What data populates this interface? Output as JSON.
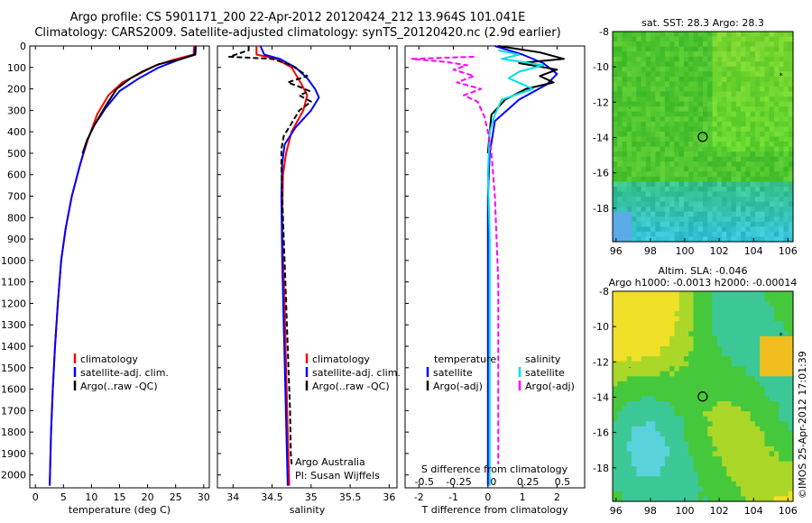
{
  "header": {
    "title_line1": "Argo profile: CS 5901171_200 22-Apr-2012 20120424_212 13.964S 101.041E",
    "title_line2": "Climatology: CARS2009. Satellite-adjusted climatology: synTS_20120420.nc (2.9d earlier)"
  },
  "colors": {
    "climatology": "#ff0000",
    "satellite": "#0000ff",
    "argo": "#000000",
    "temp_sat_diff": "#00e0e0",
    "sal_argo_diff": "#ff00ff"
  },
  "chart_data": [
    {
      "type": "line",
      "id": "temperature",
      "xlabel": "temperature (deg C)",
      "ylabel": "",
      "xlim": [
        -1,
        31
      ],
      "ylim": [
        2060,
        0
      ],
      "xticks": [
        0,
        5,
        10,
        15,
        20,
        25,
        30
      ],
      "yticks": [
        0,
        100,
        200,
        300,
        400,
        500,
        600,
        700,
        800,
        900,
        1000,
        1100,
        1200,
        1300,
        1400,
        1500,
        1600,
        1700,
        1800,
        1900,
        2000
      ],
      "legend": [
        "climatology",
        "satellite-adj. clim.",
        "Argo(..raw -QC)"
      ],
      "series": [
        {
          "name": "climatology",
          "color": "#ff0000",
          "points": [
            [
              28.3,
              0
            ],
            [
              28.2,
              40
            ],
            [
              24.5,
              65
            ],
            [
              21.5,
              90
            ],
            [
              18.5,
              130
            ],
            [
              15.5,
              170
            ],
            [
              13,
              230
            ],
            [
              11,
              320
            ],
            [
              9.3,
              440
            ],
            [
              8,
              550
            ],
            [
              6.5,
              700
            ],
            [
              5.4,
              850
            ],
            [
              4.6,
              1000
            ],
            [
              4,
              1200
            ],
            [
              3.5,
              1400
            ],
            [
              3.1,
              1600
            ],
            [
              2.8,
              1800
            ],
            [
              2.6,
              2000
            ],
            [
              2.55,
              2050
            ]
          ]
        },
        {
          "name": "satellite-adj. clim.",
          "color": "#0000ff",
          "points": [
            [
              28.5,
              0
            ],
            [
              28.4,
              40
            ],
            [
              25.5,
              65
            ],
            [
              22,
              100
            ],
            [
              18.5,
              150
            ],
            [
              15,
              210
            ],
            [
              12.5,
              290
            ],
            [
              10.5,
              370
            ],
            [
              9.2,
              440
            ],
            [
              8,
              550
            ],
            [
              6.5,
              700
            ],
            [
              5.4,
              850
            ],
            [
              4.6,
              1000
            ],
            [
              4,
              1200
            ],
            [
              3.5,
              1400
            ],
            [
              3.1,
              1600
            ],
            [
              2.8,
              1800
            ],
            [
              2.6,
              2000
            ],
            [
              2.55,
              2050
            ]
          ]
        },
        {
          "name": "Argo(..raw -QC)",
          "color": "#000000",
          "points": [
            [
              28.6,
              0
            ],
            [
              28.5,
              40
            ],
            [
              26,
              60
            ],
            [
              22,
              85
            ],
            [
              19,
              120
            ],
            [
              17,
              150
            ],
            [
              14.5,
              200
            ],
            [
              12.5,
              280
            ],
            [
              10.5,
              370
            ],
            [
              9.2,
              440
            ],
            [
              8.4,
              500
            ]
          ]
        }
      ]
    },
    {
      "type": "line",
      "id": "salinity",
      "xlabel": "salinity",
      "ylabel": "",
      "xlim": [
        33.8,
        36.1
      ],
      "ylim": [
        2060,
        0
      ],
      "xticks": [
        34,
        34.5,
        35,
        35.5,
        36
      ],
      "legend": [
        "climatology",
        "satellite-adj. clim.",
        "Argo(..raw -QC)"
      ],
      "annotations": [
        "Argo Australia",
        "PI: Susan Wijffels"
      ],
      "series": [
        {
          "name": "climatology",
          "color": "#ff0000",
          "points": [
            [
              34.3,
              0
            ],
            [
              34.3,
              40
            ],
            [
              34.55,
              60
            ],
            [
              34.75,
              100
            ],
            [
              34.88,
              180
            ],
            [
              34.95,
              230
            ],
            [
              34.9,
              300
            ],
            [
              34.75,
              400
            ],
            [
              34.68,
              500
            ],
            [
              34.64,
              600
            ],
            [
              34.63,
              800
            ],
            [
              34.64,
              1000
            ],
            [
              34.66,
              1200
            ],
            [
              34.68,
              1500
            ],
            [
              34.7,
              1800
            ],
            [
              34.72,
              2050
            ]
          ]
        },
        {
          "name": "satellite-adj. clim.",
          "color": "#0000ff",
          "points": [
            [
              34.35,
              0
            ],
            [
              34.4,
              40
            ],
            [
              34.6,
              60
            ],
            [
              34.8,
              100
            ],
            [
              34.95,
              150
            ],
            [
              35.05,
              200
            ],
            [
              35.1,
              240
            ],
            [
              35.0,
              300
            ],
            [
              34.8,
              380
            ],
            [
              34.66,
              460
            ],
            [
              34.63,
              550
            ],
            [
              34.62,
              700
            ],
            [
              34.63,
              1000
            ],
            [
              34.65,
              1300
            ],
            [
              34.67,
              1600
            ],
            [
              34.69,
              1900
            ],
            [
              34.7,
              2050
            ]
          ]
        },
        {
          "name": "Argo(..raw -QC)",
          "color": "#000000",
          "points": [
            [
              34.2,
              0
            ],
            [
              34.2,
              20
            ],
            [
              33.95,
              50
            ],
            [
              34.5,
              60
            ],
            [
              34.75,
              90
            ],
            [
              34.95,
              140
            ],
            [
              34.7,
              170
            ],
            [
              34.85,
              190
            ],
            [
              34.98,
              210
            ],
            [
              34.85,
              230
            ],
            [
              35.0,
              260
            ],
            [
              34.85,
              300
            ],
            [
              34.75,
              360
            ],
            [
              34.65,
              420
            ],
            [
              34.62,
              480
            ],
            [
              34.62,
              550
            ],
            [
              34.63,
              700
            ],
            [
              34.65,
              900
            ],
            [
              34.67,
              1100
            ],
            [
              34.69,
              1300
            ],
            [
              34.71,
              1500
            ],
            [
              34.73,
              1700
            ],
            [
              34.74,
              1900
            ],
            [
              34.75,
              1950
            ]
          ]
        }
      ]
    },
    {
      "type": "line",
      "id": "difference",
      "xlabel": "T difference from climatology",
      "xlabel2": "S difference from climatology",
      "xlim": [
        -2.4,
        2.8
      ],
      "ylim": [
        2060,
        0
      ],
      "xticks": [
        -2,
        -1,
        0,
        1,
        2
      ],
      "xticks_top": [
        -0.5,
        -0.25,
        0,
        0.25,
        0.5
      ],
      "legend_groups": [
        {
          "title": "temperature",
          "entries": [
            "satellite",
            "Argo(-adj)"
          ]
        },
        {
          "title": "salinity",
          "entries": [
            "satellite",
            "Argo(-adj)"
          ]
        }
      ],
      "series": [
        {
          "name": "temperature satellite",
          "color": "#0000ff",
          "points": [
            [
              0.2,
              0
            ],
            [
              1.0,
              40
            ],
            [
              1.6,
              80
            ],
            [
              2.0,
              130
            ],
            [
              1.7,
              180
            ],
            [
              0.9,
              250
            ],
            [
              0.2,
              350
            ],
            [
              0.05,
              500
            ],
            [
              0,
              700
            ],
            [
              0,
              1000
            ],
            [
              0,
              1400
            ],
            [
              0,
              1800
            ],
            [
              0,
              2050
            ]
          ]
        },
        {
          "name": "temperature Argo(-adj)",
          "color": "#000000",
          "points": [
            [
              0.3,
              0
            ],
            [
              1.5,
              30
            ],
            [
              2.2,
              60
            ],
            [
              0.9,
              80
            ],
            [
              2.0,
              110
            ],
            [
              1.5,
              140
            ],
            [
              1.9,
              170
            ],
            [
              1.1,
              200
            ],
            [
              0.5,
              250
            ],
            [
              0.1,
              320
            ],
            [
              0.05,
              400
            ],
            [
              0,
              500
            ]
          ]
        },
        {
          "name": "salinity satellite",
          "color": "#00e0e0",
          "points": [
            [
              0.3,
              20
            ],
            [
              0.9,
              40
            ],
            [
              0.4,
              60
            ],
            [
              1.6,
              90
            ],
            [
              0.9,
              120
            ],
            [
              0.6,
              150
            ],
            [
              1.3,
              200
            ],
            [
              0.4,
              250
            ],
            [
              0.2,
              320
            ],
            [
              0.05,
              400
            ],
            [
              0.0,
              600
            ],
            [
              0.05,
              900
            ],
            [
              0.05,
              1200
            ],
            [
              0.05,
              1500
            ],
            [
              0.05,
              1800
            ],
            [
              0.05,
              2050
            ]
          ]
        },
        {
          "name": "salinity Argo(-adj)",
          "color": "#ff00ff",
          "points": [
            [
              -0.4,
              50
            ],
            [
              -2.2,
              60
            ],
            [
              -1.2,
              75
            ],
            [
              -0.6,
              90
            ],
            [
              -1.0,
              110
            ],
            [
              -0.4,
              140
            ],
            [
              -0.9,
              170
            ],
            [
              -0.2,
              200
            ],
            [
              -0.7,
              230
            ],
            [
              -0.3,
              260
            ],
            [
              -0.1,
              330
            ],
            [
              0.0,
              400
            ],
            [
              0.1,
              500
            ],
            [
              0.2,
              700
            ],
            [
              0.25,
              900
            ],
            [
              0.3,
              1100
            ],
            [
              0.3,
              1300
            ],
            [
              0.3,
              1500
            ],
            [
              0.3,
              1700
            ],
            [
              0.3,
              1900
            ],
            [
              0.3,
              1950
            ]
          ]
        }
      ]
    },
    {
      "type": "heatmap",
      "id": "sst_map",
      "title": "sat. SST: 28.3 Argo: 28.3",
      "xlim": [
        95.8,
        106.3
      ],
      "ylim": [
        -19.9,
        -8
      ],
      "xticks": [
        96,
        98,
        100,
        102,
        104,
        106
      ],
      "yticks": [
        -8,
        -10,
        -12,
        -14,
        -16,
        -18
      ],
      "profile_location": [
        101.041,
        -13.964
      ]
    },
    {
      "type": "heatmap",
      "id": "sla_map",
      "title": "Altim. SLA: -0.046",
      "subtitle": "Argo h1000: -0.0013 h2000: -0.00014",
      "xlim": [
        95.8,
        106.3
      ],
      "ylim": [
        -19.9,
        -8
      ],
      "xticks": [
        96,
        98,
        100,
        102,
        104,
        106
      ],
      "yticks": [
        -8,
        -10,
        -12,
        -14,
        -16,
        -18
      ],
      "profile_location": [
        101.041,
        -13.964
      ]
    }
  ],
  "footer": {
    "stamp": "©IMOS 25-Apr-2012 17:01:39"
  }
}
